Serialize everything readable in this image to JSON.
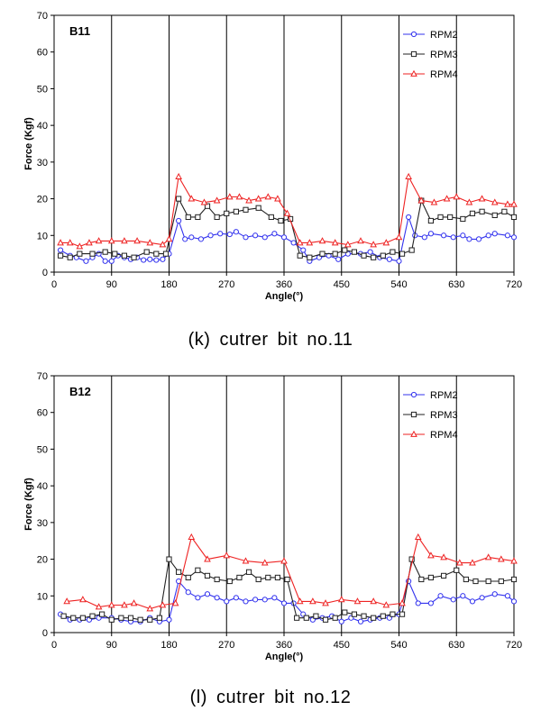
{
  "series_colors": {
    "RPM2": "#3333ee",
    "RPM3": "#222222",
    "RPM4": "#ee2222"
  },
  "chart_data": [
    {
      "type": "line",
      "title": "B11",
      "caption": "(k)  cutrer  bit  no.11",
      "xlabel": "Angle(°)",
      "ylabel": "Force (Kgf)",
      "xlim": [
        0,
        720
      ],
      "ylim": [
        0,
        70
      ],
      "xticks": [
        0,
        90,
        180,
        270,
        360,
        450,
        540,
        630,
        720
      ],
      "yticks": [
        0,
        10,
        20,
        30,
        40,
        50,
        60,
        70
      ],
      "vertical_gridlines": [
        90,
        180,
        270,
        360,
        450,
        540,
        630
      ],
      "legend_position": "top-right",
      "series": [
        {
          "name": "RPM2",
          "marker": "circle",
          "x": [
            10,
            25,
            35,
            50,
            60,
            70,
            80,
            90,
            100,
            110,
            120,
            130,
            140,
            150,
            160,
            170,
            180,
            195,
            205,
            215,
            230,
            245,
            260,
            275,
            285,
            300,
            315,
            330,
            345,
            360,
            375,
            390,
            400,
            415,
            430,
            445,
            460,
            480,
            495,
            510,
            525,
            540,
            555,
            565,
            580,
            590,
            610,
            625,
            640,
            650,
            665,
            680,
            690,
            710,
            720
          ],
          "y": [
            6,
            4.5,
            4,
            3,
            4,
            5,
            3,
            3,
            4.5,
            4,
            3.5,
            4,
            3.3,
            3.5,
            3.3,
            3.5,
            5,
            14,
            9,
            9.5,
            9,
            10,
            10.5,
            10.3,
            11,
            9.5,
            10,
            9.5,
            10.5,
            9.5,
            8,
            6,
            3,
            4,
            4.5,
            3.5,
            5,
            5,
            5.5,
            4,
            3.5,
            3,
            15,
            10,
            9.5,
            10.5,
            10,
            9.5,
            10,
            9,
            9,
            10,
            10.5,
            10,
            9.5
          ]
        },
        {
          "name": "RPM3",
          "marker": "square",
          "x": [
            10,
            25,
            40,
            60,
            80,
            95,
            110,
            125,
            145,
            160,
            175,
            195,
            210,
            225,
            240,
            255,
            270,
            285,
            300,
            320,
            340,
            355,
            370,
            385,
            400,
            420,
            440,
            455,
            470,
            485,
            500,
            515,
            530,
            545,
            560,
            575,
            590,
            605,
            620,
            640,
            655,
            670,
            690,
            705,
            720
          ],
          "y": [
            4.5,
            4,
            5,
            5,
            5.5,
            5,
            4.5,
            4,
            5.5,
            5,
            5,
            20,
            15,
            15,
            18,
            15,
            16,
            16.5,
            17,
            17.5,
            15,
            14,
            14.5,
            4.5,
            4,
            5,
            5,
            6,
            5.5,
            4.5,
            4,
            4.5,
            5.5,
            5,
            6,
            19.5,
            14,
            15,
            15,
            14.5,
            16,
            16.5,
            15.5,
            16.5,
            15
          ]
        },
        {
          "name": "RPM4",
          "marker": "triangle",
          "x": [
            10,
            25,
            40,
            55,
            70,
            90,
            110,
            130,
            150,
            170,
            180,
            195,
            215,
            235,
            255,
            275,
            290,
            305,
            320,
            335,
            350,
            365,
            385,
            400,
            420,
            440,
            460,
            480,
            500,
            520,
            540,
            555,
            575,
            595,
            615,
            630,
            650,
            670,
            690,
            710,
            720
          ],
          "y": [
            8,
            8,
            7,
            8,
            8.5,
            8.5,
            8.5,
            8.5,
            8,
            7.5,
            9,
            26,
            20,
            19,
            19.5,
            20.5,
            20.5,
            19.5,
            20,
            20.5,
            20,
            16,
            8,
            8,
            8.5,
            8,
            7.5,
            8.5,
            7.5,
            8,
            9.5,
            26,
            19.5,
            19,
            20,
            20.5,
            19,
            20,
            19,
            18.5,
            18.5
          ]
        }
      ]
    },
    {
      "type": "line",
      "title": "B12",
      "caption": "(l)  cutrer  bit  no.12",
      "xlabel": "Angle(°)",
      "ylabel": "Force (Kgf)",
      "xlim": [
        0,
        720
      ],
      "ylim": [
        0,
        70
      ],
      "xticks": [
        0,
        90,
        180,
        270,
        360,
        450,
        540,
        630,
        720
      ],
      "yticks": [
        0,
        10,
        20,
        30,
        40,
        50,
        60,
        70
      ],
      "vertical_gridlines": [
        90,
        180,
        270,
        360,
        450,
        540,
        630
      ],
      "legend_position": "top-right",
      "series": [
        {
          "name": "RPM2",
          "marker": "circle",
          "x": [
            10,
            25,
            40,
            55,
            70,
            90,
            105,
            120,
            135,
            150,
            165,
            180,
            195,
            210,
            225,
            240,
            255,
            270,
            285,
            300,
            315,
            330,
            345,
            360,
            375,
            390,
            405,
            420,
            435,
            450,
            465,
            480,
            495,
            510,
            525,
            540,
            555,
            570,
            590,
            605,
            625,
            640,
            655,
            670,
            690,
            710,
            720
          ],
          "y": [
            5,
            3.5,
            3.5,
            3.5,
            4,
            4,
            3.5,
            3,
            3,
            4,
            3,
            3.5,
            14,
            11,
            9.5,
            10.5,
            9.5,
            8.5,
            9.5,
            8.5,
            9,
            9,
            9.5,
            8,
            8,
            5,
            3.5,
            4,
            4.5,
            3,
            4,
            3,
            3.5,
            4,
            4,
            5,
            14,
            8,
            8,
            10,
            9,
            10,
            8.5,
            9.5,
            10.5,
            10,
            8.5
          ]
        },
        {
          "name": "RPM3",
          "marker": "square",
          "x": [
            15,
            30,
            45,
            60,
            75,
            90,
            105,
            120,
            135,
            150,
            165,
            180,
            195,
            210,
            225,
            240,
            255,
            275,
            290,
            305,
            320,
            335,
            350,
            365,
            380,
            395,
            410,
            425,
            440,
            455,
            470,
            485,
            500,
            515,
            530,
            545,
            560,
            575,
            590,
            610,
            630,
            645,
            660,
            680,
            700,
            720
          ],
          "y": [
            4.5,
            4,
            4,
            4.5,
            5,
            3.5,
            4,
            4,
            3.5,
            3.5,
            4,
            20,
            16.5,
            15,
            17,
            15.5,
            14.5,
            14,
            15,
            16.5,
            14.5,
            15,
            15,
            14.5,
            4,
            4,
            4.5,
            3.5,
            4,
            5.5,
            5,
            4.5,
            4,
            4.5,
            5,
            5,
            20,
            14.5,
            15,
            15.5,
            17,
            14.5,
            14,
            14,
            14,
            14.5
          ]
        },
        {
          "name": "RPM4",
          "marker": "triangle",
          "x": [
            20,
            45,
            70,
            90,
            110,
            125,
            150,
            170,
            190,
            215,
            240,
            270,
            300,
            330,
            360,
            385,
            405,
            425,
            450,
            475,
            500,
            520,
            545,
            570,
            590,
            610,
            635,
            655,
            680,
            700,
            720
          ],
          "y": [
            8.5,
            9,
            7,
            7.5,
            7.5,
            8,
            6.5,
            7.5,
            8,
            26,
            20,
            21,
            19.5,
            19,
            19.5,
            8.5,
            8.5,
            8,
            9,
            8.5,
            8.5,
            7.5,
            8,
            26,
            21,
            20.5,
            19,
            19,
            20.5,
            20,
            19.5
          ]
        }
      ]
    }
  ]
}
